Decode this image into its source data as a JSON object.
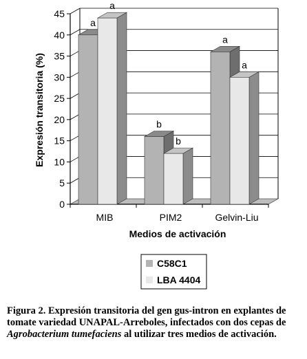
{
  "chart_data": {
    "type": "bar",
    "categories": [
      "MIB",
      "PIM2",
      "Gelvin-Liu"
    ],
    "series": [
      {
        "name": "C58C1",
        "values": [
          40,
          16,
          36
        ],
        "labels": [
          "a",
          "b",
          "a"
        ],
        "color": "#b3b3b3",
        "side_color": "#6e6e6e",
        "top_color": "#8a8a8a"
      },
      {
        "name": "LBA 4404",
        "values": [
          44,
          12,
          30
        ],
        "labels": [
          "a",
          "b",
          "a"
        ],
        "color": "#e8e8e8",
        "side_color": "#8c8c8c",
        "top_color": "#c4c4c4"
      }
    ],
    "ylim": [
      0,
      45
    ],
    "yticks": [
      0,
      5,
      10,
      15,
      20,
      25,
      30,
      35,
      40,
      45
    ],
    "xlabel": "Medios de activación",
    "ylabel": "Expresión transitoria (%)",
    "grid": true,
    "legend_position": "bottom"
  },
  "caption": {
    "prefix": "Figura 2. Expresión transitoria del gen gus-intron en explantes de tomate variedad UNAPAL-Arreboles, infectados con dos cepas de ",
    "italic": "Agrobacterium tumefaciens",
    "suffix": " al utilizar tres medios de activación."
  }
}
